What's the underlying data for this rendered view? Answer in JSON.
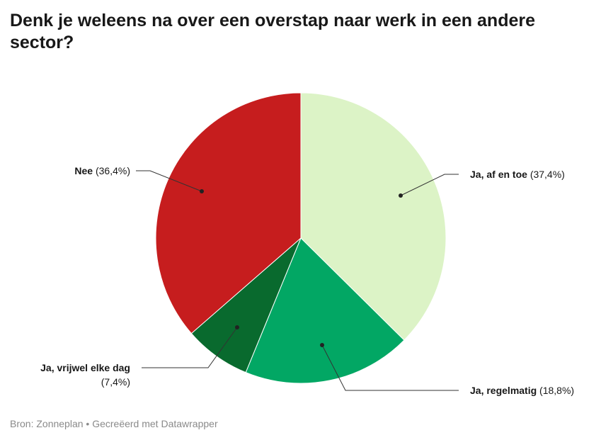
{
  "chart_data": {
    "type": "pie",
    "title": "Denk je weleens na over een overstap naar werk in een andere sector?",
    "slices": [
      {
        "label": "Ja, af en toe",
        "value": 37.4,
        "value_label": "(37,4%)",
        "color": "#dcf3c6"
      },
      {
        "label": "Ja, regelmatig",
        "value": 18.8,
        "value_label": "(18,8%)",
        "color": "#02a764"
      },
      {
        "label": "Ja, vrijwel elke dag",
        "value": 7.4,
        "value_label": "(7,4%)",
        "color": "#096a2e"
      },
      {
        "label": "Nee",
        "value": 36.4,
        "value_label": "(36,4%)",
        "color": "#c61d1e"
      }
    ]
  },
  "footer": {
    "source": "Bron: Zonneplan • Gecreëerd met Datawrapper"
  }
}
